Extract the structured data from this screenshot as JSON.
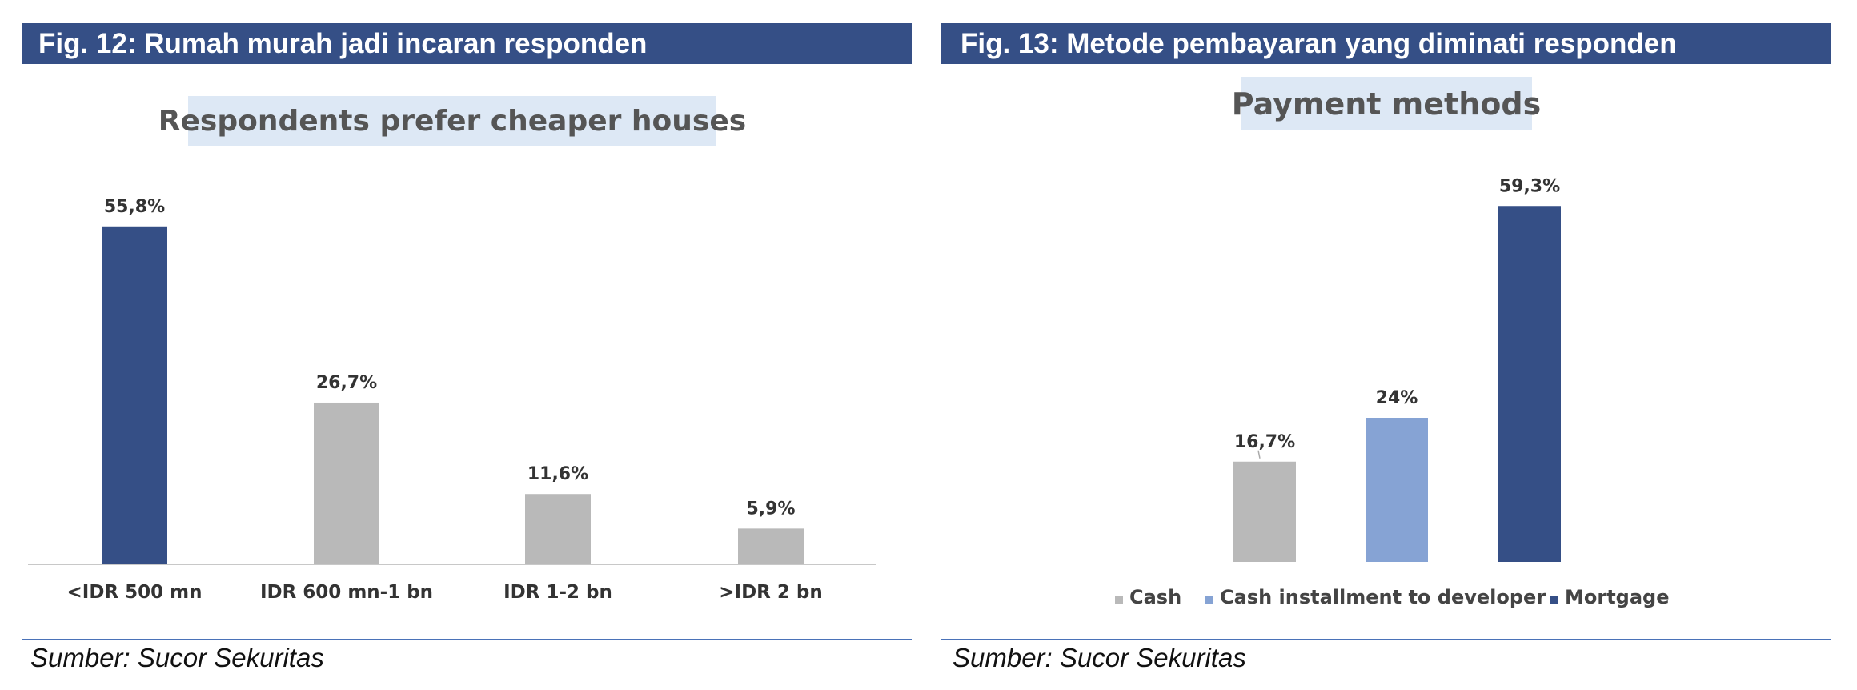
{
  "figures": [
    {
      "header": "Fig. 12:  Rumah murah jadi incaran responden",
      "source": "Sumber: Sucor Sekuritas"
    },
    {
      "header": "Fig. 13: Metode pembayaran yang diminati responden",
      "source": "Sumber: Sucor Sekuritas"
    }
  ],
  "colors": {
    "header_bg": "#354f86",
    "navy": "#354f86",
    "gray": "#b9b9b9",
    "light_blue": "#86a3d4",
    "title_bg": "#dde8f5"
  },
  "chart_data": [
    {
      "type": "bar",
      "title": "Respondents prefer cheaper houses",
      "categories": [
        "<IDR 500 mn",
        "IDR 600 mn-1 bn",
        "IDR 1-2 bn",
        ">IDR 2 bn"
      ],
      "values": [
        55.8,
        26.7,
        11.6,
        5.9
      ],
      "value_labels": [
        "55,8%",
        "26,7%",
        "11,6%",
        "5,9%"
      ],
      "bar_colors": [
        "#354f86",
        "#b9b9b9",
        "#b9b9b9",
        "#b9b9b9"
      ],
      "ylim": [
        0,
        60
      ],
      "grid": false
    },
    {
      "type": "bar",
      "title": "Payment methods",
      "categories": [
        "Cash",
        "Cash installment to developer",
        "Mortgage"
      ],
      "values": [
        16.7,
        24,
        59.3
      ],
      "value_labels": [
        "16,7%",
        "24%",
        "59,3%"
      ],
      "bar_colors": [
        "#b9b9b9",
        "#86a3d4",
        "#354f86"
      ],
      "legend": {
        "position": "bottom",
        "entries": [
          "Cash",
          "Cash installment to developer",
          "Mortgage"
        ]
      },
      "ylim": [
        0,
        60
      ],
      "grid": false
    }
  ]
}
